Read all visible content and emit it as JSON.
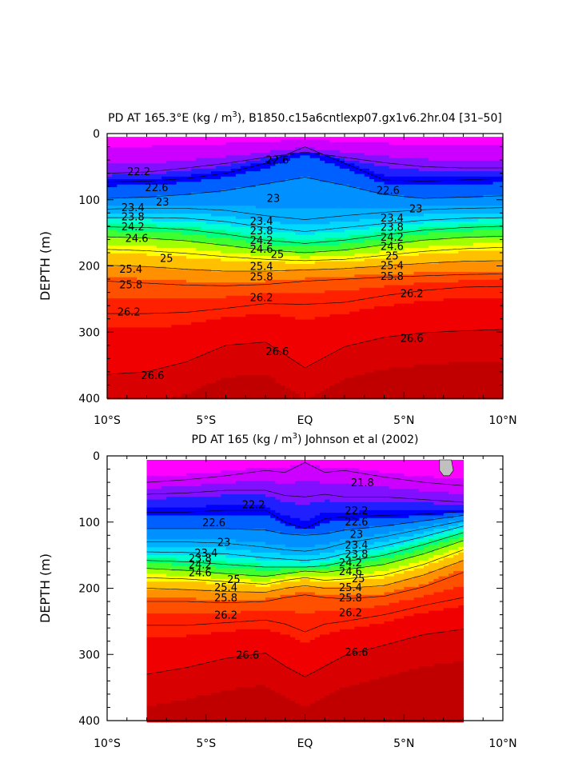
{
  "chart_data": [
    {
      "type": "contour",
      "title_prefix": "PD AT 165.3°E (kg / m",
      "title_sup": "3",
      "title_suffix": "), B1850.c15a6cntlexp07.gx1v6.2hr.04 [31–50]",
      "ylabel": "DEPTH (m)",
      "xlabel": "",
      "x_ticks": [
        "10°S",
        "5°S",
        "EQ",
        "5°N",
        "10°N"
      ],
      "x_range": [
        -10,
        10
      ],
      "y_ticks": [
        "0",
        "100",
        "200",
        "300",
        "400"
      ],
      "ylim": [
        0,
        400
      ],
      "data_x_extent": [
        -10,
        10
      ],
      "contour_levels": [
        22.2,
        22.6,
        23,
        23.4,
        23.8,
        24.2,
        24.6,
        25,
        25.4,
        25.8,
        26.2,
        26.6
      ],
      "isopycnals": [
        {
          "level": 22.2,
          "lat": [
            -10,
            -8,
            -6,
            -4,
            -2,
            0,
            2,
            4,
            6,
            8,
            10
          ],
          "depth": [
            60,
            58,
            52,
            45,
            36,
            28,
            36,
            44,
            50,
            52,
            52
          ]
        },
        {
          "level": 22.6,
          "lat": [
            -10,
            -8,
            -6,
            -4,
            -2,
            0,
            2,
            4,
            6,
            8,
            10
          ],
          "depth": [
            73,
            72,
            68,
            60,
            45,
            20,
            45,
            70,
            72,
            70,
            68
          ]
        },
        {
          "level": 23,
          "lat": [
            -10,
            -8,
            -6,
            -4,
            -2,
            0,
            2,
            4,
            6,
            8,
            10
          ],
          "depth": [
            98,
            96,
            92,
            86,
            76,
            66,
            78,
            92,
            98,
            96,
            94
          ]
        },
        {
          "level": 23.4,
          "lat": [
            -10,
            -8,
            -6,
            -4,
            -2,
            0,
            2,
            4,
            6,
            8,
            10
          ],
          "depth": [
            114,
            113,
            113,
            116,
            124,
            130,
            124,
            119,
            115,
            113,
            112
          ]
        },
        {
          "level": 23.8,
          "lat": [
            -10,
            -8,
            -6,
            -4,
            -2,
            0,
            2,
            4,
            6,
            8,
            10
          ],
          "depth": [
            127,
            127,
            128,
            133,
            142,
            148,
            142,
            136,
            131,
            128,
            127
          ]
        },
        {
          "level": 24.2,
          "lat": [
            -10,
            -8,
            -6,
            -4,
            -2,
            0,
            2,
            4,
            6,
            8,
            10
          ],
          "depth": [
            141,
            142,
            145,
            152,
            161,
            166,
            161,
            153,
            146,
            142,
            140
          ]
        },
        {
          "level": 24.6,
          "lat": [
            -10,
            -8,
            -6,
            -4,
            -2,
            0,
            2,
            4,
            6,
            8,
            10
          ],
          "depth": [
            156,
            158,
            162,
            169,
            176,
            180,
            176,
            168,
            161,
            157,
            155
          ]
        },
        {
          "level": 25,
          "lat": [
            -10,
            -8,
            -6,
            -4,
            -2,
            0,
            2,
            4,
            6,
            8,
            10
          ],
          "depth": [
            175,
            177,
            181,
            186,
            190,
            192,
            190,
            184,
            178,
            174,
            172
          ]
        },
        {
          "level": 25.4,
          "lat": [
            -10,
            -8,
            -6,
            -4,
            -2,
            0,
            2,
            4,
            6,
            8,
            10
          ],
          "depth": [
            199,
            201,
            205,
            208,
            208,
            206,
            204,
            200,
            196,
            193,
            192
          ]
        },
        {
          "level": 25.8,
          "lat": [
            -10,
            -8,
            -6,
            -4,
            -2,
            0,
            2,
            4,
            6,
            8,
            10
          ],
          "depth": [
            223,
            226,
            229,
            230,
            228,
            223,
            220,
            217,
            215,
            213,
            212
          ]
        },
        {
          "level": 26.2,
          "lat": [
            -10,
            -8,
            -6,
            -4,
            -2,
            0,
            2,
            4,
            6,
            8,
            10
          ],
          "depth": [
            272,
            272,
            270,
            264,
            257,
            258,
            255,
            245,
            237,
            232,
            231
          ]
        },
        {
          "level": 26.6,
          "lat": [
            -10,
            -8,
            -6,
            -4,
            -2,
            0,
            2,
            4,
            6,
            8,
            10
          ],
          "depth": [
            364,
            360,
            345,
            320,
            315,
            354,
            322,
            308,
            301,
            298,
            296
          ]
        }
      ],
      "labels": [
        {
          "text": "22.2",
          "lat": -8.4,
          "depth": 57
        },
        {
          "text": "22.6",
          "lat": -7.5,
          "depth": 81
        },
        {
          "text": "23",
          "lat": -7.2,
          "depth": 103
        },
        {
          "text": "23.4",
          "lat": -8.7,
          "depth": 111
        },
        {
          "text": "23.8",
          "lat": -8.7,
          "depth": 125
        },
        {
          "text": "24.2",
          "lat": -8.7,
          "depth": 140
        },
        {
          "text": "24.6",
          "lat": -8.5,
          "depth": 158
        },
        {
          "text": "25",
          "lat": -7.0,
          "depth": 188
        },
        {
          "text": "25.4",
          "lat": -8.8,
          "depth": 204
        },
        {
          "text": "25.8",
          "lat": -8.8,
          "depth": 228
        },
        {
          "text": "26.2",
          "lat": -8.9,
          "depth": 269
        },
        {
          "text": "26.6",
          "lat": -7.7,
          "depth": 365
        },
        {
          "text": "22.6",
          "lat": -1.4,
          "depth": 39
        },
        {
          "text": "23",
          "lat": -1.6,
          "depth": 97
        },
        {
          "text": "23.4",
          "lat": -2.2,
          "depth": 132
        },
        {
          "text": "23.8",
          "lat": -2.2,
          "depth": 146
        },
        {
          "text": "24.2",
          "lat": -2.2,
          "depth": 161
        },
        {
          "text": "24.6",
          "lat": -2.2,
          "depth": 174
        },
        {
          "text": "25",
          "lat": -1.4,
          "depth": 182
        },
        {
          "text": "25.4",
          "lat": -2.2,
          "depth": 200
        },
        {
          "text": "25.8",
          "lat": -2.2,
          "depth": 216
        },
        {
          "text": "26.2",
          "lat": -2.2,
          "depth": 247
        },
        {
          "text": "26.6",
          "lat": -1.4,
          "depth": 329
        },
        {
          "text": "22.6",
          "lat": 4.2,
          "depth": 85
        },
        {
          "text": "23",
          "lat": 5.6,
          "depth": 113
        },
        {
          "text": "23.4",
          "lat": 4.4,
          "depth": 127
        },
        {
          "text": "23.8",
          "lat": 4.4,
          "depth": 141
        },
        {
          "text": "24.2",
          "lat": 4.4,
          "depth": 156
        },
        {
          "text": "24.6",
          "lat": 4.4,
          "depth": 170
        },
        {
          "text": "25",
          "lat": 4.4,
          "depth": 184
        },
        {
          "text": "25.4",
          "lat": 4.4,
          "depth": 199
        },
        {
          "text": "25.8",
          "lat": 4.4,
          "depth": 215
        },
        {
          "text": "26.2",
          "lat": 5.4,
          "depth": 241
        },
        {
          "text": "26.6",
          "lat": 5.4,
          "depth": 309
        }
      ]
    },
    {
      "type": "contour",
      "title_prefix": "PD AT 165 (kg / m",
      "title_sup": "3",
      "title_suffix": ") Johnson et al (2002)",
      "ylabel": "DEPTH (m)",
      "xlabel": "",
      "x_ticks": [
        "10°S",
        "5°S",
        "EQ",
        "5°N",
        "10°N"
      ],
      "x_range": [
        -10,
        10
      ],
      "y_ticks": [
        "0",
        "100",
        "200",
        "300",
        "400"
      ],
      "ylim": [
        0,
        400
      ],
      "data_x_extent": [
        -8,
        8
      ],
      "contour_levels": [
        21.8,
        22.2,
        22.6,
        23,
        23.4,
        23.8,
        24.2,
        24.6,
        25,
        25.4,
        25.8,
        26.2,
        26.6
      ],
      "isopycnals": [
        {
          "level": 21.8,
          "lat": [
            -8,
            -6,
            -4,
            -2,
            -1,
            0,
            1,
            2,
            4,
            6,
            8
          ],
          "depth": [
            40,
            36,
            30,
            22,
            25,
            10,
            25,
            22,
            32,
            40,
            45
          ]
        },
        {
          "level": 22.2,
          "lat": [
            -8,
            -6,
            -4,
            -2,
            -1,
            0,
            1,
            2,
            4,
            6,
            8
          ],
          "depth": [
            58,
            56,
            52,
            52,
            60,
            62,
            58,
            62,
            62,
            66,
            70
          ]
        },
        {
          "level": 22.6,
          "lat": [
            -8,
            -6,
            -4,
            -2,
            -1,
            0,
            1,
            2,
            4,
            6,
            8
          ],
          "depth": [
            85,
            85,
            82,
            82,
            100,
            110,
            95,
            92,
            90,
            88,
            84
          ]
        },
        {
          "level": 23,
          "lat": [
            -8,
            -6,
            -4,
            -2,
            -1,
            0,
            1,
            2,
            4,
            6,
            8
          ],
          "depth": [
            110,
            110,
            110,
            112,
            118,
            120,
            118,
            112,
            106,
            98,
            90
          ]
        },
        {
          "level": 23.4,
          "lat": [
            -8,
            -6,
            -4,
            -2,
            -1,
            0,
            1,
            2,
            4,
            6,
            8
          ],
          "depth": [
            130,
            130,
            132,
            138,
            142,
            144,
            140,
            132,
            122,
            110,
            98
          ]
        },
        {
          "level": 23.8,
          "lat": [
            -8,
            -6,
            -4,
            -2,
            -1,
            0,
            1,
            2,
            4,
            6,
            8
          ],
          "depth": [
            145,
            146,
            148,
            154,
            156,
            158,
            155,
            148,
            136,
            122,
            106
          ]
        },
        {
          "level": 24.2,
          "lat": [
            -8,
            -6,
            -4,
            -2,
            -1,
            0,
            1,
            2,
            4,
            6,
            8
          ],
          "depth": [
            158,
            160,
            164,
            168,
            168,
            168,
            166,
            160,
            150,
            134,
            116
          ]
        },
        {
          "level": 24.6,
          "lat": [
            -8,
            -6,
            -4,
            -2,
            -1,
            0,
            1,
            2,
            4,
            6,
            8
          ],
          "depth": [
            170,
            173,
            178,
            182,
            178,
            174,
            176,
            172,
            164,
            148,
            128
          ]
        },
        {
          "level": 25,
          "lat": [
            -8,
            -6,
            -4,
            -2,
            -1,
            0,
            1,
            2,
            4,
            6,
            8
          ],
          "depth": [
            184,
            186,
            190,
            194,
            188,
            184,
            188,
            186,
            180,
            164,
            142
          ]
        },
        {
          "level": 25.4,
          "lat": [
            -8,
            -6,
            -4,
            -2,
            -1,
            0,
            1,
            2,
            4,
            6,
            8
          ],
          "depth": [
            200,
            202,
            205,
            206,
            200,
            196,
            200,
            200,
            196,
            180,
            158
          ]
        },
        {
          "level": 25.8,
          "lat": [
            -8,
            -6,
            -4,
            -2,
            -1,
            0,
            1,
            2,
            4,
            6,
            8
          ],
          "depth": [
            220,
            220,
            222,
            220,
            214,
            210,
            214,
            216,
            212,
            198,
            176
          ]
        },
        {
          "level": 26.2,
          "lat": [
            -8,
            -6,
            -4,
            -2,
            -1,
            0,
            1,
            2,
            4,
            6,
            8
          ],
          "depth": [
            256,
            256,
            252,
            248,
            254,
            266,
            254,
            250,
            240,
            226,
            214
          ]
        },
        {
          "level": 26.6,
          "lat": [
            -8,
            -6,
            -4,
            -2,
            -1,
            0,
            1,
            2,
            4,
            6,
            8
          ],
          "depth": [
            330,
            320,
            306,
            298,
            318,
            334,
            318,
            302,
            286,
            270,
            262
          ]
        }
      ],
      "labels": [
        {
          "text": "21.8",
          "lat": 2.9,
          "depth": 40
        },
        {
          "text": "22.2",
          "lat": -2.6,
          "depth": 73
        },
        {
          "text": "22.2",
          "lat": 2.6,
          "depth": 82
        },
        {
          "text": "22.6",
          "lat": -4.6,
          "depth": 100
        },
        {
          "text": "22.6",
          "lat": 2.6,
          "depth": 99
        },
        {
          "text": "23",
          "lat": -4.1,
          "depth": 130
        },
        {
          "text": "23",
          "lat": 2.6,
          "depth": 118
        },
        {
          "text": "23.4",
          "lat": -5.0,
          "depth": 146
        },
        {
          "text": "23.4",
          "lat": 2.6,
          "depth": 134
        },
        {
          "text": "23.8",
          "lat": -5.3,
          "depth": 154
        },
        {
          "text": "23.8",
          "lat": 2.6,
          "depth": 148
        },
        {
          "text": "24.2",
          "lat": -5.3,
          "depth": 164
        },
        {
          "text": "24.2",
          "lat": 2.3,
          "depth": 161
        },
        {
          "text": "24.6",
          "lat": -5.3,
          "depth": 176
        },
        {
          "text": "24.6",
          "lat": 2.3,
          "depth": 174
        },
        {
          "text": "25",
          "lat": -3.6,
          "depth": 186
        },
        {
          "text": "25",
          "lat": 2.7,
          "depth": 185
        },
        {
          "text": "25.4",
          "lat": -4.0,
          "depth": 198
        },
        {
          "text": "25.4",
          "lat": 2.3,
          "depth": 198
        },
        {
          "text": "25.8",
          "lat": -4.0,
          "depth": 214
        },
        {
          "text": "25.8",
          "lat": 2.3,
          "depth": 214
        },
        {
          "text": "26.2",
          "lat": -4.0,
          "depth": 240
        },
        {
          "text": "26.2",
          "lat": 2.3,
          "depth": 236
        },
        {
          "text": "26.6",
          "lat": -2.9,
          "depth": 300
        },
        {
          "text": "26.6",
          "lat": 2.6,
          "depth": 296
        }
      ]
    }
  ],
  "colors": {
    "palette": [
      "#ff00ff",
      "#cc00ff",
      "#a000ff",
      "#7020ff",
      "#4020ff",
      "#0000ff",
      "#0050ff",
      "#0080ff",
      "#00a0ff",
      "#00c0ff",
      "#00e0ff",
      "#00ffd0",
      "#00ff90",
      "#40ff40",
      "#a0ff00",
      "#ffff00",
      "#ffc000",
      "#ff9000",
      "#ff5000",
      "#ff2000",
      "#f00000",
      "#d80000",
      "#c00000"
    ],
    "contour_line": "#000000",
    "undefined": "#c0c0c0"
  }
}
